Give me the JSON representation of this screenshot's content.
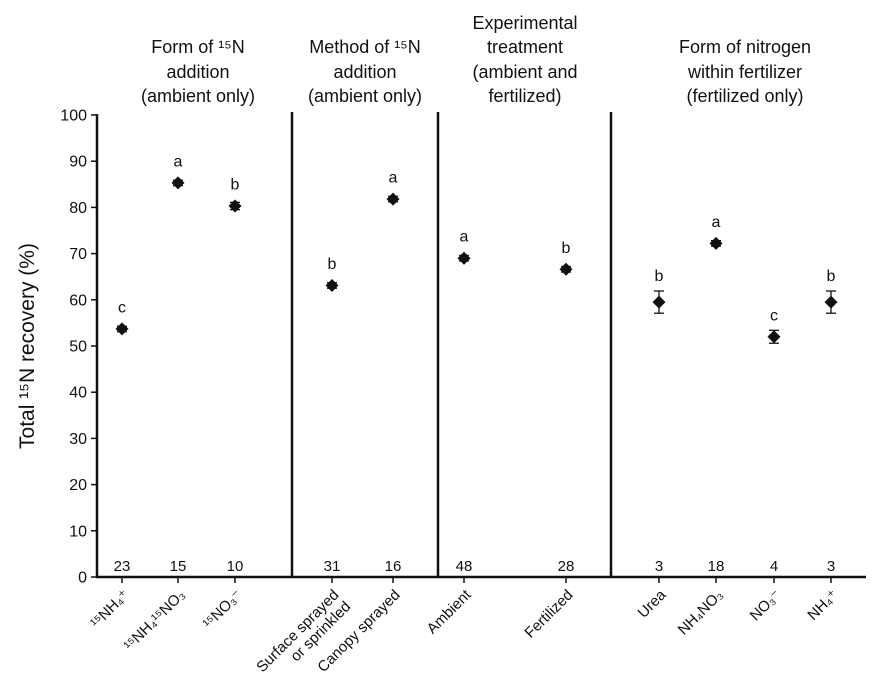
{
  "chart_data": {
    "type": "scatter",
    "ylabel": "Total ¹⁵N recovery (%)",
    "ylim": [
      0,
      100
    ],
    "yticks": [
      0,
      10,
      20,
      30,
      40,
      50,
      60,
      70,
      80,
      90,
      100
    ],
    "marker": "diamond",
    "error_bars": true,
    "panels": [
      {
        "title_lines": [
          "Form of ¹⁵N",
          "addition",
          "(ambient only)"
        ],
        "points": [
          {
            "category_lines": [
              "¹⁵NH₄⁺"
            ],
            "value": 53.7,
            "error": 0.6,
            "letter": "c",
            "n": "23"
          },
          {
            "category_lines": [
              "¹⁵NH₄¹⁵NO₃"
            ],
            "value": 85.3,
            "error": 0.6,
            "letter": "a",
            "n": "15"
          },
          {
            "category_lines": [
              "¹⁵NO₃⁻"
            ],
            "value": 80.3,
            "error": 0.8,
            "letter": "b",
            "n": "10"
          }
        ]
      },
      {
        "title_lines": [
          "Method of ¹⁵N",
          "addition",
          "(ambient only)"
        ],
        "points": [
          {
            "category_lines": [
              "Surface sprayed",
              "or sprinkled"
            ],
            "value": 63.1,
            "error": 0.6,
            "letter": "b",
            "n": "31"
          },
          {
            "category_lines": [
              "Canopy sprayed"
            ],
            "value": 81.8,
            "error": 0.6,
            "letter": "a",
            "n": "16"
          }
        ]
      },
      {
        "title_lines": [
          "Experimental",
          "treatment",
          "(ambient and",
          "fertilized)"
        ],
        "points": [
          {
            "category_lines": [
              "Ambient"
            ],
            "value": 69.0,
            "error": 0.6,
            "letter": "a",
            "n": "48"
          },
          {
            "category_lines": [
              "Fertilized"
            ],
            "value": 66.6,
            "error": 0.6,
            "letter": "b",
            "n": "28"
          }
        ]
      },
      {
        "title_lines": [
          "Form of nitrogen",
          "within fertilizer",
          "(fertilized only)"
        ],
        "points": [
          {
            "category_lines": [
              "Urea"
            ],
            "value": 59.5,
            "error": 2.4,
            "letter": "b",
            "n": "3"
          },
          {
            "category_lines": [
              "NH₄NO₃"
            ],
            "value": 72.2,
            "error": 0.6,
            "letter": "a",
            "n": "18"
          },
          {
            "category_lines": [
              "NO₃⁻"
            ],
            "value": 52.0,
            "error": 1.4,
            "letter": "c",
            "n": "4"
          },
          {
            "category_lines": [
              "NH₄⁺"
            ],
            "value": 59.5,
            "error": 2.4,
            "letter": "b",
            "n": "3"
          }
        ]
      }
    ]
  }
}
